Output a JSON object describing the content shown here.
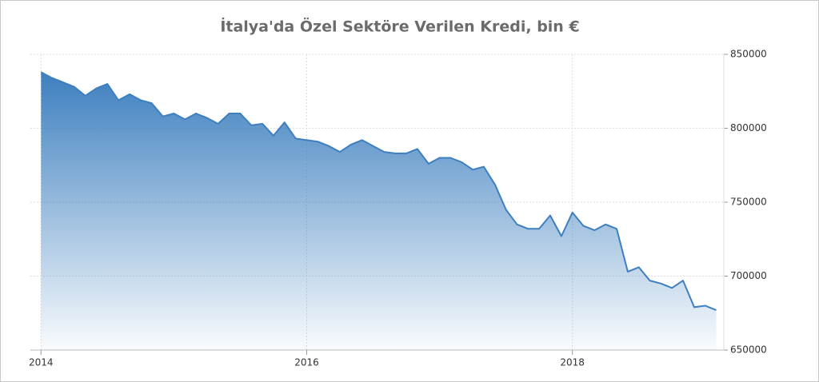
{
  "chart_data": {
    "type": "area",
    "title": "İtalya'da Özel Sektöre Verilen Kredi, bin €",
    "color": "#3d7fbf",
    "grid": true,
    "y_axis_side": "right",
    "x": [
      2014,
      2014.083,
      2014.167,
      2014.25,
      2014.333,
      2014.417,
      2014.5,
      2014.583,
      2014.667,
      2014.75,
      2014.833,
      2014.917,
      2015,
      2015.083,
      2015.167,
      2015.25,
      2015.333,
      2015.417,
      2015.5,
      2015.583,
      2015.667,
      2015.75,
      2015.833,
      2015.917,
      2016,
      2016.083,
      2016.167,
      2016.25,
      2016.333,
      2016.417,
      2016.5,
      2016.583,
      2016.667,
      2016.75,
      2016.833,
      2016.917,
      2017,
      2017.083,
      2017.167,
      2017.25,
      2017.333,
      2017.417,
      2017.5,
      2017.583,
      2017.667,
      2017.75,
      2017.833,
      2017.917,
      2018,
      2018.083,
      2018.167,
      2018.25,
      2018.333,
      2018.417,
      2018.5,
      2018.583,
      2018.667,
      2018.75,
      2018.833,
      2018.917,
      2019,
      2019.083
    ],
    "values": [
      838000,
      834000,
      831000,
      828000,
      822000,
      827000,
      830000,
      819000,
      823000,
      819000,
      817000,
      808000,
      810000,
      806000,
      810000,
      807000,
      803000,
      810000,
      810000,
      802000,
      803000,
      795000,
      804000,
      793000,
      792000,
      791000,
      788000,
      784000,
      789000,
      792000,
      788000,
      784000,
      783000,
      783000,
      786000,
      776000,
      780000,
      780000,
      777000,
      772000,
      774000,
      762000,
      745000,
      735000,
      732000,
      732000,
      741000,
      727000,
      743000,
      734000,
      731000,
      735000,
      732000,
      703000,
      706000,
      697000,
      695000,
      692000,
      697000,
      679000,
      680000,
      677000
    ],
    "xlim": [
      2013.92,
      2019.14
    ],
    "xticks": [
      2014,
      2016,
      2018
    ],
    "ylim": [
      650000,
      850000
    ],
    "yticks": [
      650000,
      700000,
      750000,
      800000,
      850000
    ]
  }
}
